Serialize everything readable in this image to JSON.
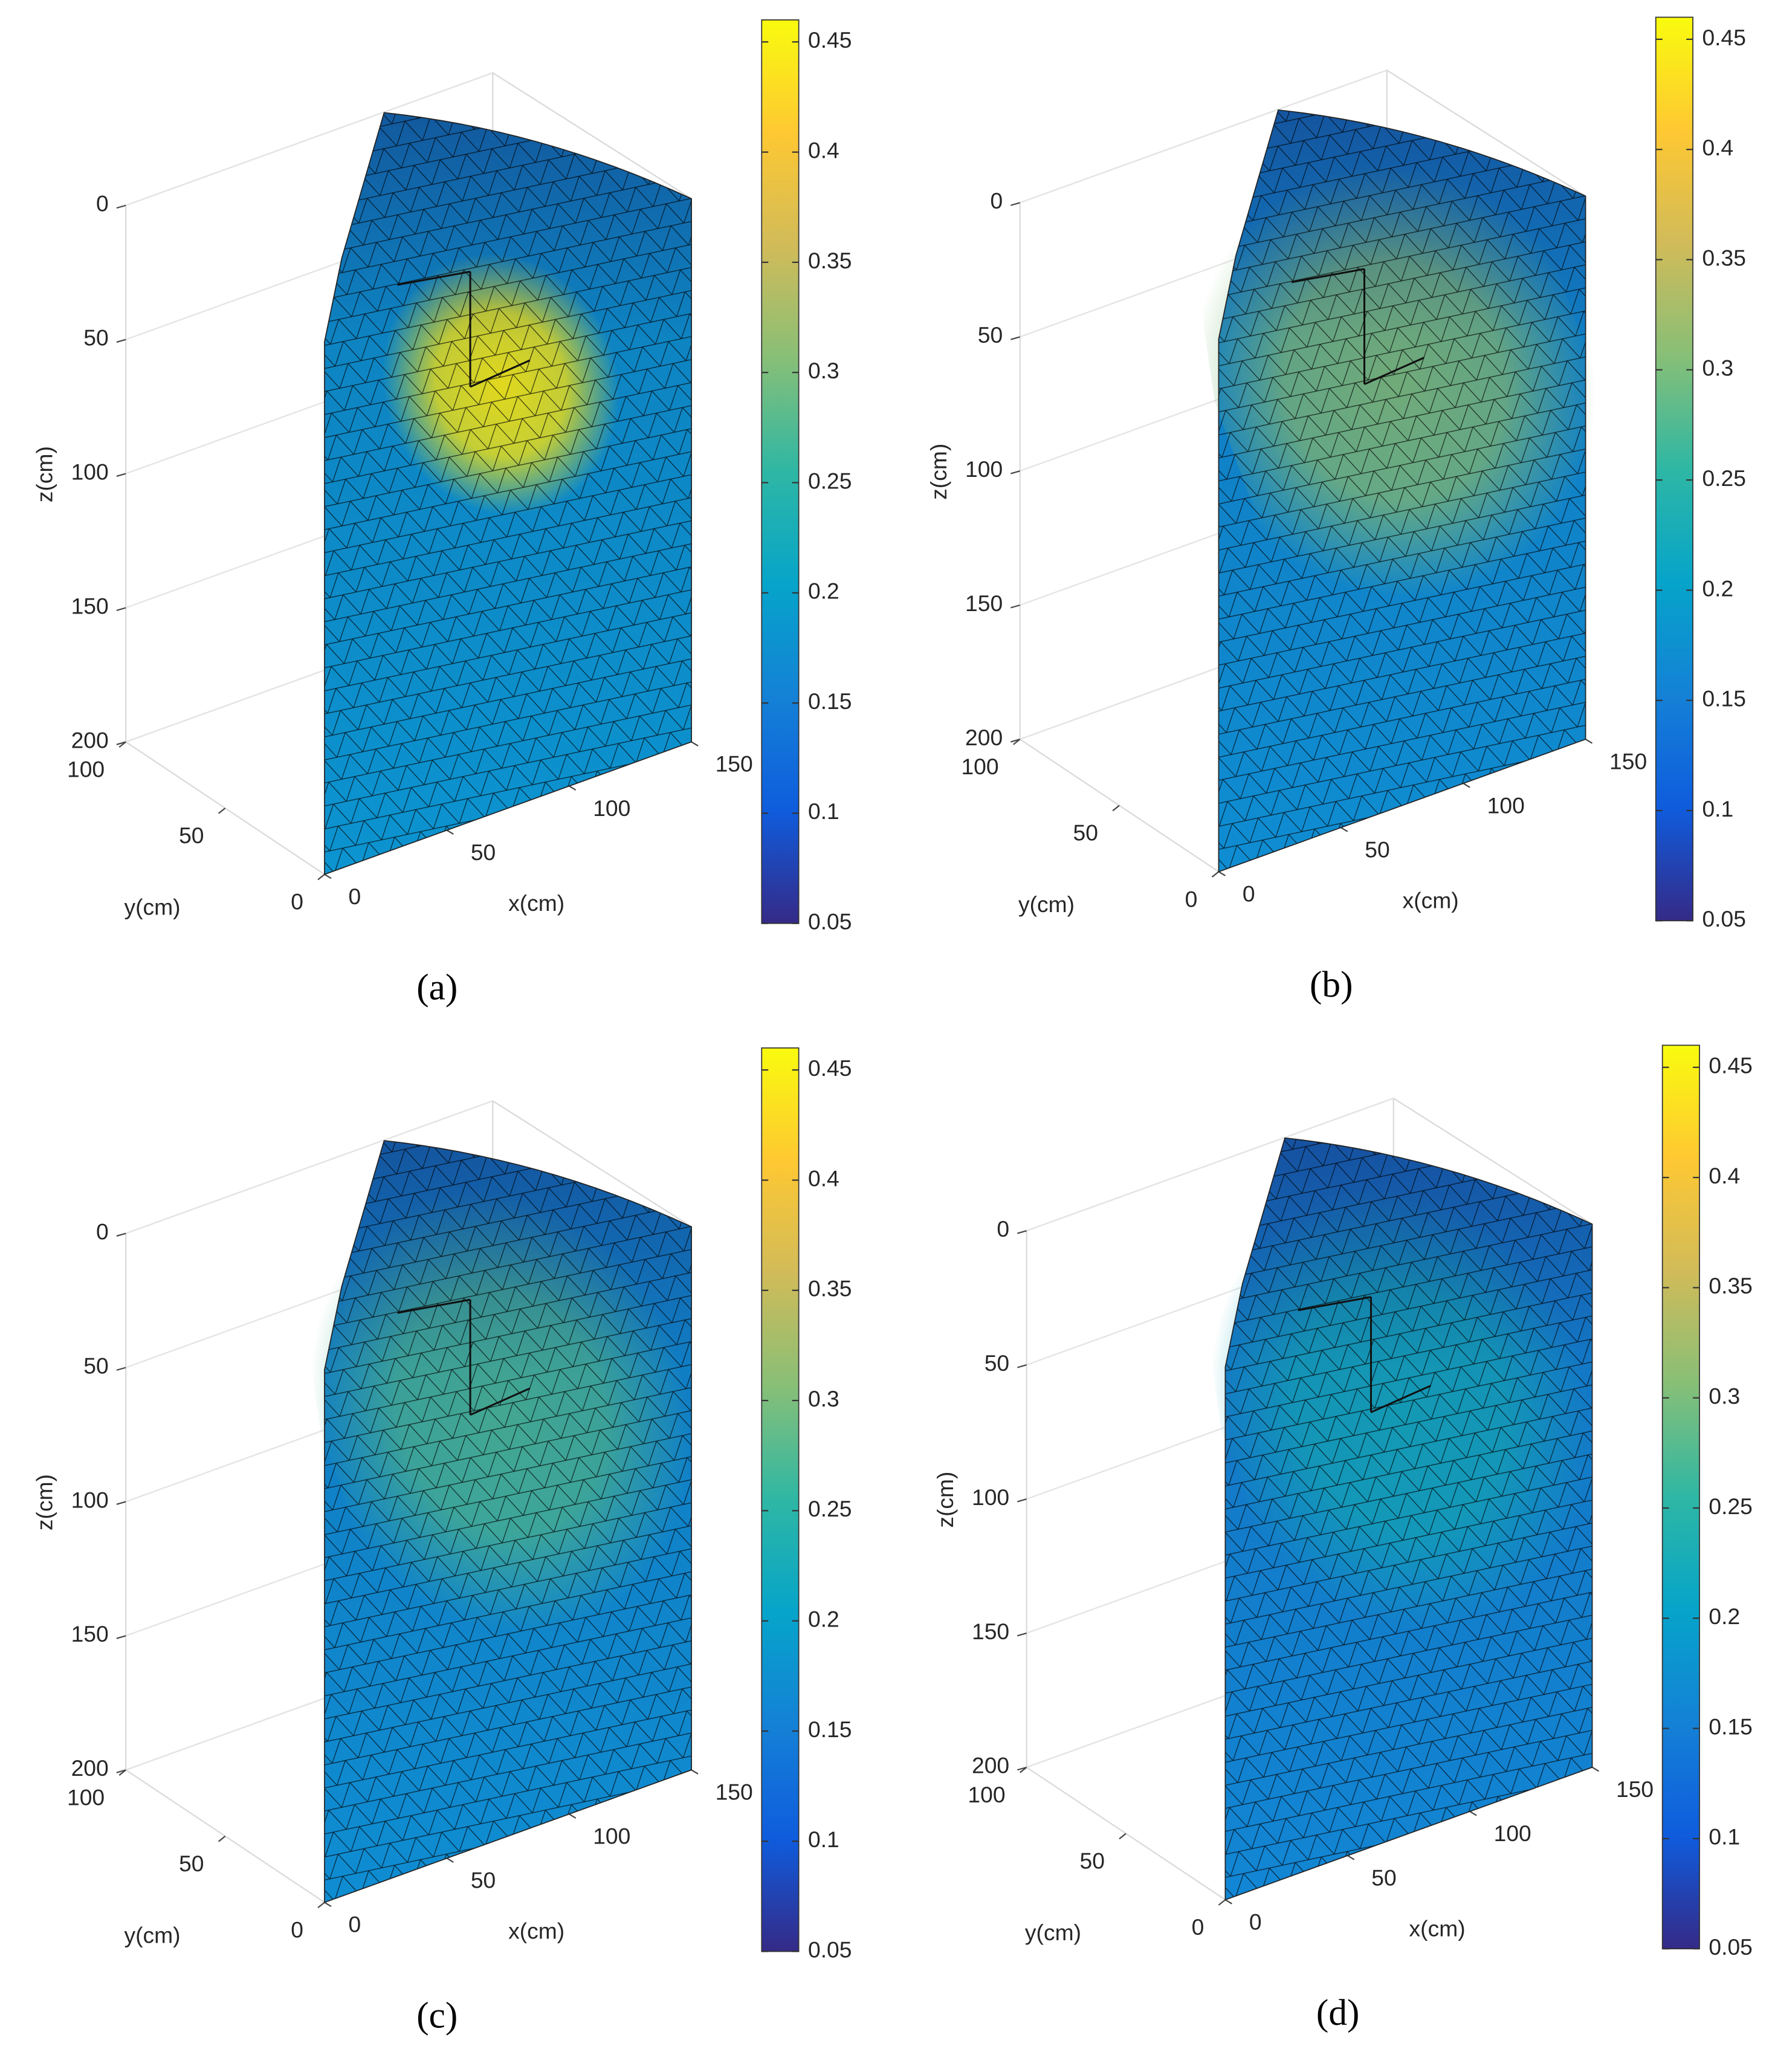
{
  "chart_data": [
    {
      "type": "surface3d",
      "panel_label": "(a)",
      "xlabel": "x(cm)",
      "ylabel": "y(cm)",
      "zlabel": "z(cm)",
      "xlim": [
        0,
        150
      ],
      "xticks": [
        0,
        50,
        100,
        150
      ],
      "ylim": [
        0,
        100
      ],
      "yticks": [
        0,
        50,
        100
      ],
      "zlim": [
        0,
        200
      ],
      "zticks": [
        0,
        50,
        100,
        150,
        200
      ],
      "z_reversed": true,
      "clim": [
        0.05,
        0.46
      ],
      "cticks": [
        0.05,
        0.1,
        0.15,
        0.2,
        0.25,
        0.3,
        0.35,
        0.4,
        0.45
      ],
      "base_value": 0.18,
      "peak_value": 0.45
    },
    {
      "type": "surface3d",
      "panel_label": "(b)",
      "xlabel": "x(cm)",
      "ylabel": "y(cm)",
      "zlabel": "z(cm)",
      "xlim": [
        0,
        150
      ],
      "xticks": [
        0,
        50,
        100,
        150
      ],
      "ylim": [
        0,
        100
      ],
      "yticks": [
        0,
        50,
        100
      ],
      "zlim": [
        0,
        200
      ],
      "zticks": [
        0,
        50,
        100,
        150,
        200
      ],
      "z_reversed": true,
      "clim": [
        0.05,
        0.46
      ],
      "cticks": [
        0.05,
        0.1,
        0.15,
        0.2,
        0.25,
        0.3,
        0.35,
        0.4,
        0.45
      ],
      "base_value": 0.17,
      "peak_value": 0.3
    },
    {
      "type": "surface3d",
      "panel_label": "(c)",
      "xlabel": "x(cm)",
      "ylabel": "y(cm)",
      "zlabel": "z(cm)",
      "xlim": [
        0,
        150
      ],
      "xticks": [
        0,
        50,
        100,
        150
      ],
      "ylim": [
        0,
        100
      ],
      "yticks": [
        0,
        50,
        100
      ],
      "zlim": [
        0,
        200
      ],
      "zticks": [
        0,
        50,
        100,
        150,
        200
      ],
      "z_reversed": true,
      "clim": [
        0.05,
        0.46
      ],
      "cticks": [
        0.05,
        0.1,
        0.15,
        0.2,
        0.25,
        0.3,
        0.35,
        0.4,
        0.45
      ],
      "base_value": 0.17,
      "peak_value": 0.27
    },
    {
      "type": "surface3d",
      "panel_label": "(d)",
      "xlabel": "x(cm)",
      "ylabel": "y(cm)",
      "zlabel": "z(cm)",
      "xlim": [
        0,
        150
      ],
      "xticks": [
        0,
        50,
        100,
        150
      ],
      "ylim": [
        0,
        100
      ],
      "yticks": [
        0,
        50,
        100
      ],
      "zlim": [
        0,
        200
      ],
      "zticks": [
        0,
        50,
        100,
        150,
        200
      ],
      "z_reversed": true,
      "clim": [
        0.05,
        0.46
      ],
      "cticks": [
        0.05,
        0.1,
        0.15,
        0.2,
        0.25,
        0.3,
        0.35,
        0.4,
        0.45
      ],
      "base_value": 0.16,
      "peak_value": 0.22
    }
  ]
}
